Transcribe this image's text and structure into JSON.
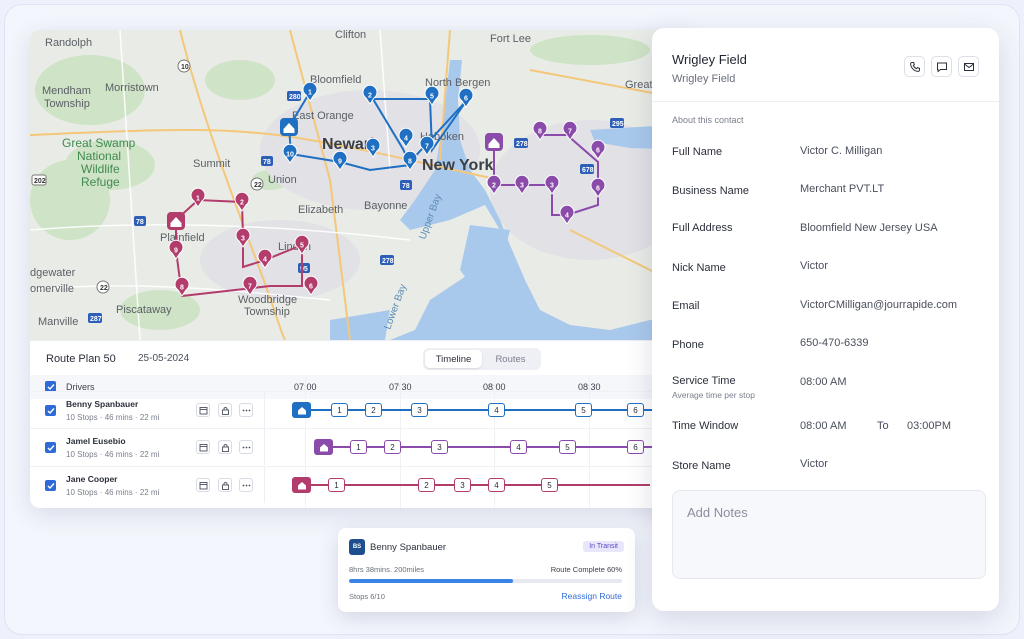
{
  "colors": {
    "blue": "#1f6fc3",
    "purple": "#8a4bab",
    "magenta": "#b23c6c",
    "accent": "#2f6bd8"
  },
  "map": {
    "labels": {
      "randolph": "Randolph",
      "mendham": "Mendham",
      "township": "Township",
      "morristown": "Morristown",
      "clifton": "Clifton",
      "fort_lee": "Fort Lee",
      "bloomfield": "Bloomfield",
      "north_bergen": "North Bergen",
      "east_orange": "East Orange",
      "great": "Great",
      "newark": "Newark",
      "hoboken": "Hoboken",
      "new_york": "New York",
      "summit": "Summit",
      "union": "Union",
      "elizabeth": "Elizabeth",
      "bayonne": "Bayonne",
      "upper_bay": "Upper Bay",
      "plainfield": "Plainfield",
      "linden": "Linden",
      "woodbridge": "Woodbridge",
      "woodbridge_township": "Township",
      "edgewater": "dgewater",
      "somerville": "omerville",
      "piscataway": "Piscataway",
      "manville": "Manville",
      "lower_bay": "Lower Bay",
      "park1": "Great Swamp",
      "park2": "National",
      "park3": "Wildlife",
      "park4": "Refuge"
    },
    "route_blue_stops": [
      "1",
      "2",
      "3",
      "4",
      "5",
      "6",
      "7",
      "8",
      "9",
      "10"
    ],
    "route_purple_stops": [
      "2",
      "3",
      "3",
      "4",
      "6",
      "6",
      "7",
      "8"
    ],
    "route_magenta_stops": [
      "1",
      "2",
      "3",
      "4",
      "5",
      "6",
      "7",
      "8",
      "9"
    ]
  },
  "plan": {
    "title": "Route Plan 50",
    "date": "25-05-2024",
    "tabs": [
      "Timeline",
      "Routes"
    ]
  },
  "timeline": {
    "header_label": "Drivers",
    "times": [
      "07:00",
      "07:30",
      "08:00",
      "08:30"
    ],
    "drivers": [
      {
        "name": "Benny Spanbauer",
        "stops": "10 Stops",
        "mins": "46 mins",
        "miles": "22 mi",
        "route_stops": [
          "1",
          "2",
          "3",
          "4",
          "5",
          "6"
        ]
      },
      {
        "name": "Jamel Eusebio",
        "stops": "10 Stops",
        "mins": "46 mins",
        "miles": "22 mi",
        "route_stops": [
          "1",
          "2",
          "3",
          "4",
          "5",
          "6"
        ]
      },
      {
        "name": "Jane Cooper",
        "stops": "10 Stops",
        "mins": "46 mins",
        "miles": "22 mi",
        "route_stops": [
          "1",
          "2",
          "3",
          "4",
          "5"
        ]
      }
    ]
  },
  "card": {
    "initials": "BS",
    "name": "Benny Spanbauer",
    "badge": "In Transit",
    "stats": "8hrs 38mins.  200miles",
    "complete_label": "Route Complete 60%",
    "progress": 0.6,
    "stops": "Stops  6/10",
    "action": "Reassign Route"
  },
  "contact": {
    "title": "Wrigley Field",
    "subtitle": "Wrigley Field",
    "about": "About this contact",
    "fields": [
      {
        "label": "Full Name",
        "value": "Victor C. Milligan"
      },
      {
        "label": "Business Name",
        "value": "Merchant PVT.LT"
      },
      {
        "label": "Full Address",
        "value": "Bloomfield New Jersey USA"
      },
      {
        "label": "Nick Name",
        "value": "Victor"
      },
      {
        "label": "Email",
        "value": "VictorCMilligan@jourrapide.com"
      },
      {
        "label": "Phone",
        "value": "650-470-6339"
      },
      {
        "label": "Service Time",
        "sublabel": "Average time per stop",
        "value": "08:00 AM"
      },
      {
        "label": "Time Window",
        "value": "08:00 AM",
        "to": "To",
        "value2": "03:00PM"
      },
      {
        "label": "Store Name",
        "value": "Victor"
      }
    ],
    "notes_placeholder": "Add Notes"
  }
}
